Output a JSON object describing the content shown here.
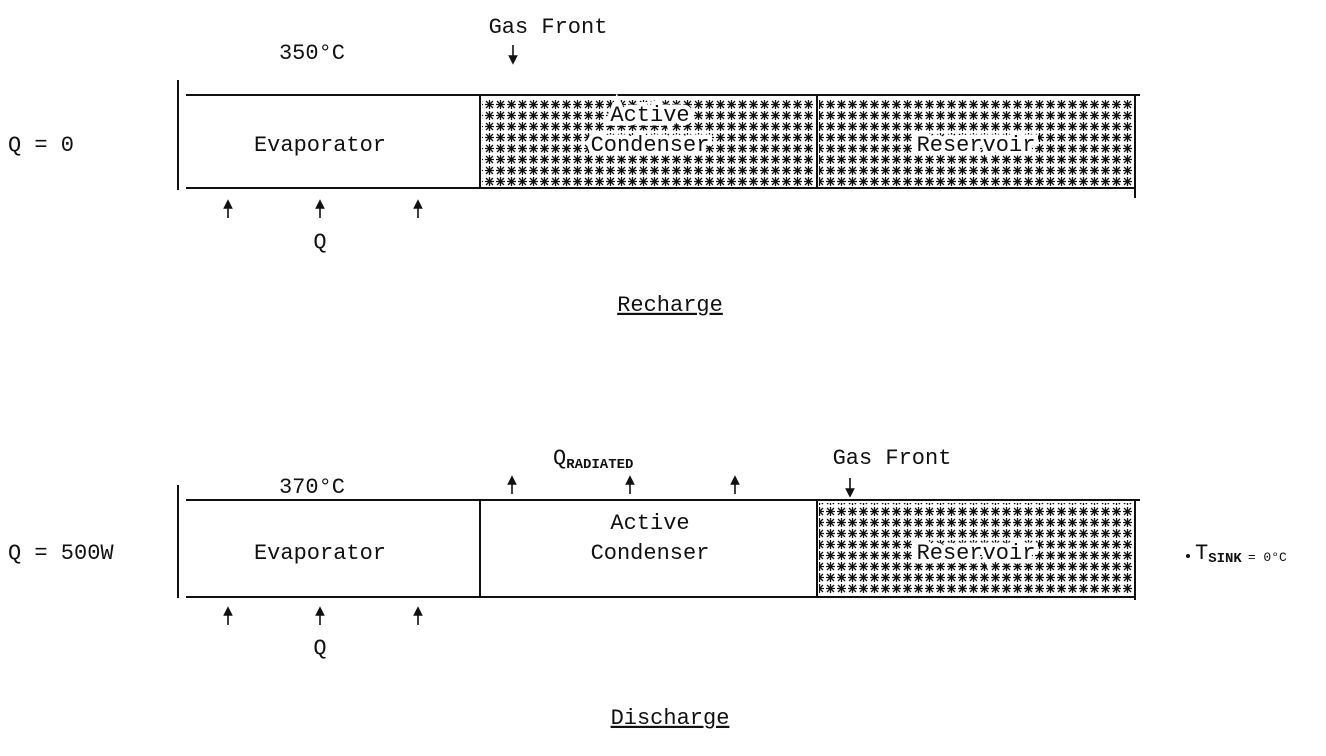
{
  "recharge": {
    "gas_front": "Gas Front",
    "temperature": "350°C",
    "heat_input": "Q = 0",
    "evaporator": "Evaporator",
    "condenser": [
      "Active",
      "Condenser"
    ],
    "reservoir": "Reservoir",
    "q_label": "Q",
    "caption": "Recharge"
  },
  "discharge": {
    "radiated": {
      "symbol": "Q",
      "subscript": "RADIATED"
    },
    "gas_front": "Gas Front",
    "temperature": "370°C",
    "heat_input": "Q = 500W",
    "evaporator": "Evaporator",
    "condenser": [
      "Active",
      "Condenser"
    ],
    "reservoir": "Reservoir",
    "sink": {
      "symbol": "T",
      "subscript": "SINK",
      "value": "= 0°C"
    },
    "q_label": "Q",
    "caption": "Discharge"
  }
}
